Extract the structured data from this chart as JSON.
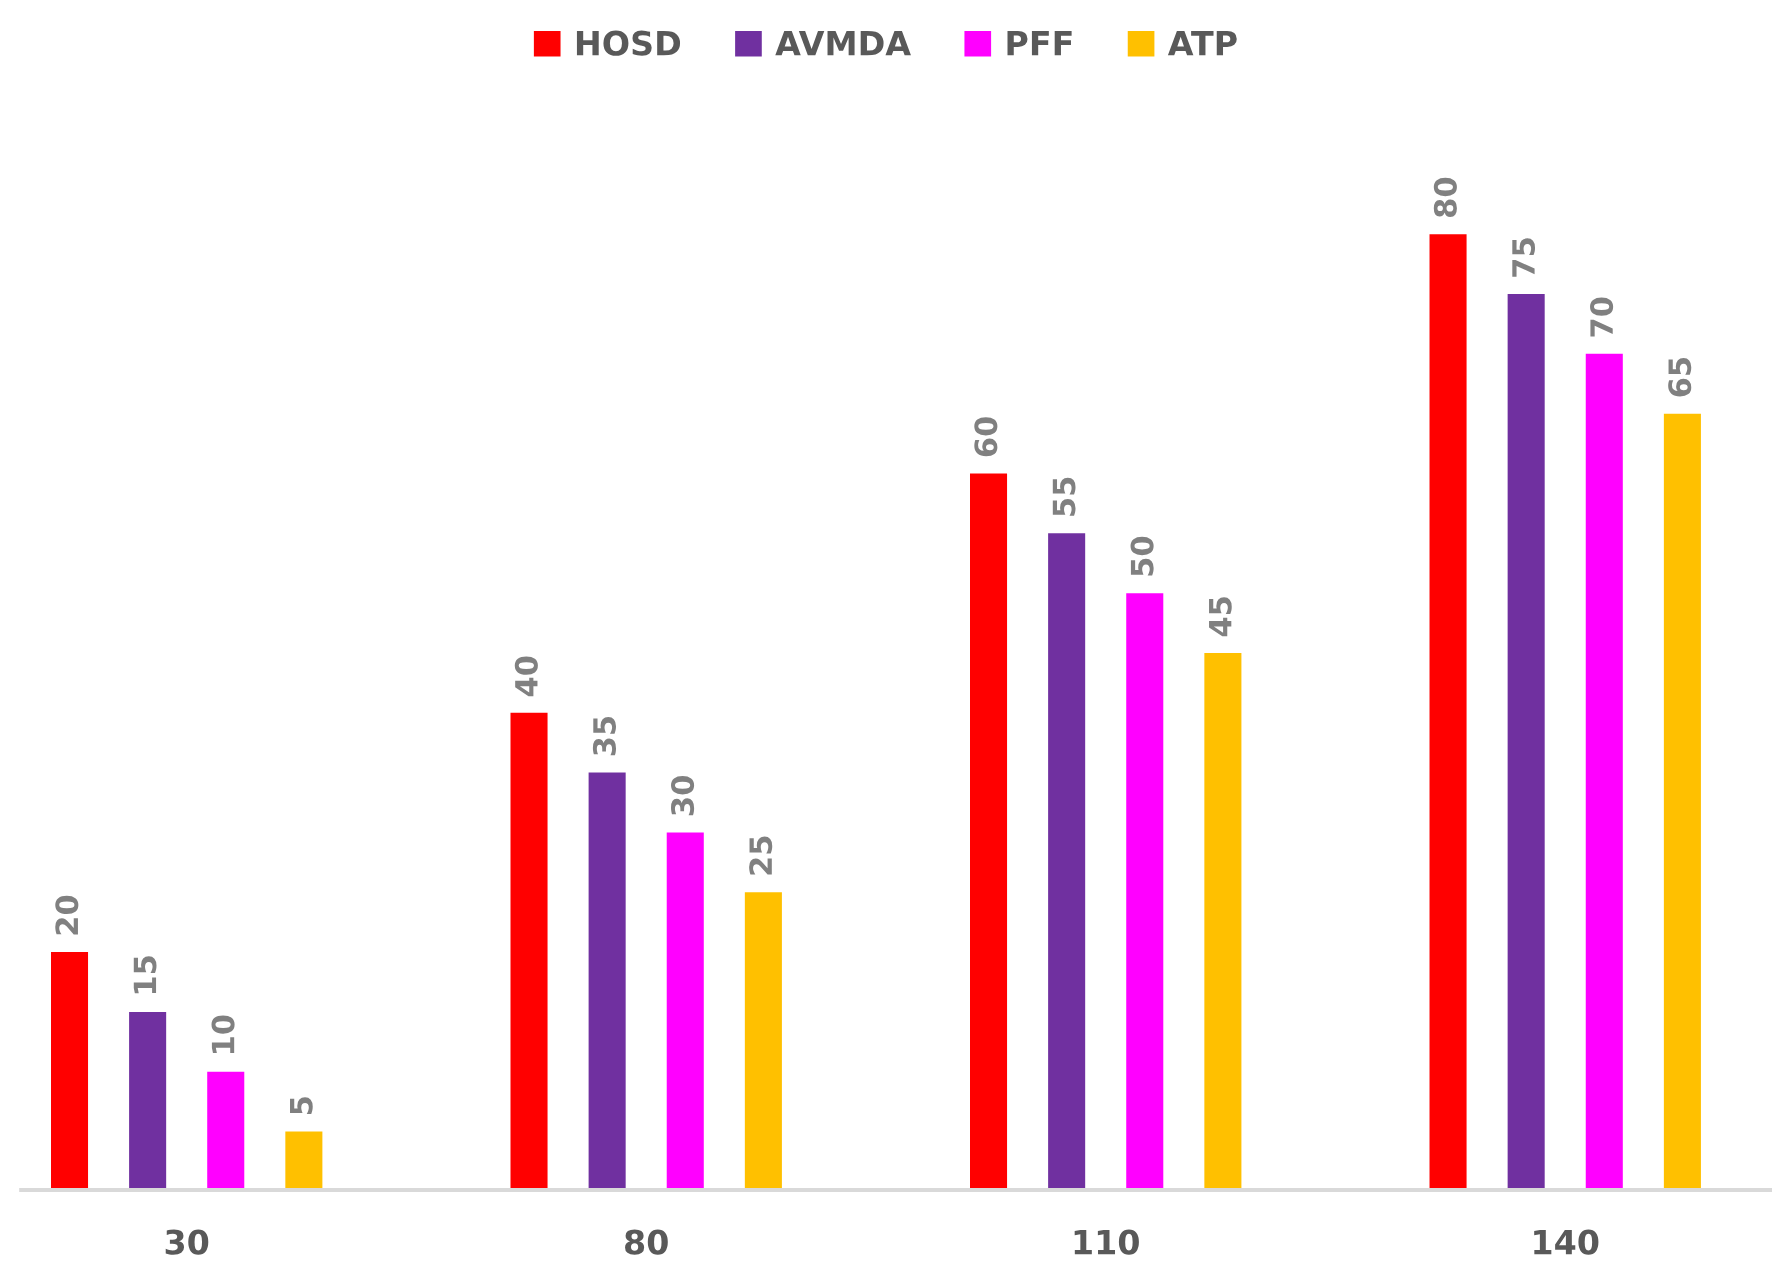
{
  "chart_data": {
    "type": "bar",
    "categories": [
      "30",
      "80",
      "110",
      "140"
    ],
    "series": [
      {
        "name": "HOSD",
        "color": "#ff0000",
        "values": [
          20,
          40,
          60,
          80
        ]
      },
      {
        "name": "AVMDA",
        "color": "#7030a0",
        "values": [
          15,
          35,
          55,
          75
        ]
      },
      {
        "name": "PFF",
        "color": "#ff00ff",
        "values": [
          10,
          30,
          50,
          70
        ]
      },
      {
        "name": "ATP",
        "color": "#ffc000",
        "values": [
          5,
          25,
          45,
          65
        ]
      }
    ],
    "data_labels": true,
    "legend": "top",
    "grid": false,
    "tick_labels": "x"
  }
}
